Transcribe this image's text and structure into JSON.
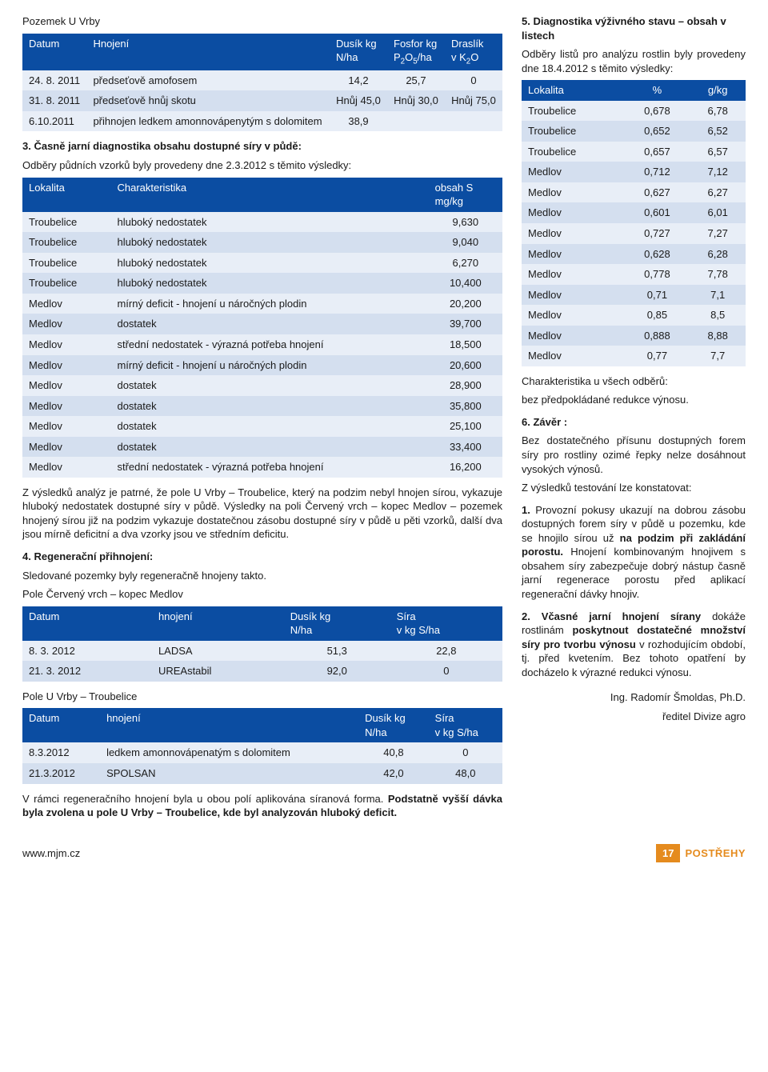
{
  "left": {
    "title_line": "Pozemek U Vrby",
    "table1": {
      "head": [
        "Datum",
        "Hnojení",
        "Dusík kg N/ha",
        "Fosfor kg P₂O₅/ha",
        "Draslík v K₂O"
      ],
      "rows": [
        [
          "24. 8. 2011",
          "předseťově amofosem",
          "14,2",
          "25,7",
          "0"
        ],
        [
          "31. 8. 2011",
          "předseťově hnůj skotu",
          "Hnůj 45,0",
          "Hnůj 30,0",
          "Hnůj 75,0"
        ],
        [
          "6.10.2011",
          "přihnojen ledkem amonnovápenytým s dolomitem",
          "38,9",
          "",
          ""
        ]
      ]
    },
    "sec3_title": "3. Časně jarní diagnostika obsahu dostupné síry v půdě:",
    "sec3_line": "Odběry půdních vzorků byly provedeny dne 2.3.2012 s těmito výsledky:",
    "table2": {
      "head": [
        "Lokalita",
        "Charakteristika",
        "obsah S mg/kg"
      ],
      "rows": [
        [
          "Troubelice",
          "hluboký nedostatek",
          "9,630"
        ],
        [
          "Troubelice",
          "hluboký nedostatek",
          "9,040"
        ],
        [
          "Troubelice",
          "hluboký nedostatek",
          "6,270"
        ],
        [
          "Troubelice",
          "hluboký nedostatek",
          "10,400"
        ],
        [
          "Medlov",
          "mírný deficit - hnojení u náročných plodin",
          "20,200"
        ],
        [
          "Medlov",
          "dostatek",
          "39,700"
        ],
        [
          "Medlov",
          "střední nedostatek - výrazná potřeba hnojení",
          "18,500"
        ],
        [
          "Medlov",
          "mírný deficit - hnojení u náročných plodin",
          "20,600"
        ],
        [
          "Medlov",
          "dostatek",
          "28,900"
        ],
        [
          "Medlov",
          "dostatek",
          "35,800"
        ],
        [
          "Medlov",
          "dostatek",
          "25,100"
        ],
        [
          "Medlov",
          "dostatek",
          "33,400"
        ],
        [
          "Medlov",
          "střední nedostatek - výrazná potřeba hnojení",
          "16,200"
        ]
      ]
    },
    "para_after_t2": "Z výsledků analýz je patrné, že pole U Vrby – Troubelice, který na podzim nebyl hnojen sírou, vykazuje hluboký nedostatek dostupné síry v půdě. Výsledky na poli Červený vrch – kopec Medlov – pozemek hnojený sírou již na podzim vykazuje dostatečnou zásobu dostupné síry v půdě u pěti vzorků, další dva jsou mírně deficitní a dva vzorky jsou ve středním deficitu.",
    "sec4_title": "4. Regenerační přihnojení:",
    "sec4_line1": "Sledované pozemky byly regeneračně hnojeny takto.",
    "sec4_line2": "Pole Červený vrch – kopec Medlov",
    "table3": {
      "head": [
        "Datum",
        "hnojení",
        "Dusík kg N/ha",
        "Síra v kg S/ha"
      ],
      "rows": [
        [
          "8. 3. 2012",
          "LADSA",
          "51,3",
          "22,8"
        ],
        [
          "21. 3. 2012",
          "UREAstabil",
          "92,0",
          "0"
        ]
      ]
    },
    "sec4_line3": "Pole U Vrby – Troubelice",
    "table4": {
      "head": [
        "Datum",
        "hnojení",
        "Dusík kg N/ha",
        "Síra v kg S/ha"
      ],
      "rows": [
        [
          "8.3.2012",
          "ledkem amonnovápenatým s dolomitem",
          "40,8",
          "0"
        ],
        [
          "21.3.2012",
          "SPOLSAN",
          "42,0",
          "48,0"
        ]
      ]
    },
    "para_after_t4a": "V rámci regeneračního hnojení byla u obou polí aplikována síranová forma. ",
    "para_after_t4b": "Podstatně vyšší dávka byla zvolena u pole U Vrby – Troubelice, kde byl analyzován hluboký deficit."
  },
  "right": {
    "sec5_title": "5. Diagnostika výživného stavu – obsah v listech",
    "sec5_line": "Odběry listů pro analýzu rostlin byly provedeny dne 18.4.2012 s těmito výsledky:",
    "table5": {
      "head": [
        "Lokalita",
        "%",
        "g/kg"
      ],
      "rows": [
        [
          "Troubelice",
          "0,678",
          "6,78"
        ],
        [
          "Troubelice",
          "0,652",
          "6,52"
        ],
        [
          "Troubelice",
          "0,657",
          "6,57"
        ],
        [
          "Medlov",
          "0,712",
          "7,12"
        ],
        [
          "Medlov",
          "0,627",
          "6,27"
        ],
        [
          "Medlov",
          "0,601",
          "6,01"
        ],
        [
          "Medlov",
          "0,727",
          "7,27"
        ],
        [
          "Medlov",
          "0,628",
          "6,28"
        ],
        [
          "Medlov",
          "0,778",
          "7,78"
        ],
        [
          "Medlov",
          "0,71",
          "7,1"
        ],
        [
          "Medlov",
          "0,85",
          "8,5"
        ],
        [
          "Medlov",
          "0,888",
          "8,88"
        ],
        [
          "Medlov",
          "0,77",
          "7,7"
        ]
      ]
    },
    "char_line1": "Charakteristika u všech odběrů:",
    "char_line2": "bez předpokládané redukce výnosu.",
    "sec6_title": "6. Závěr :",
    "sec6_p1": "Bez dostatečného přísunu dostupných forem síry pro rostliny ozimé řepky nelze dosáhnout vysokých výnosů.",
    "sec6_p2": "Z výsledků testování lze konstatovat:",
    "point1_bold": "1.",
    "point1_a": " Provozní pokusy ukazují na dobrou zásobu dostupných forem síry v půdě u pozemku, kde se hnojilo sírou už ",
    "point1_b": "na podzim při zakládání porostu.",
    "point1_c": " Hnojení kombinovaným hnojivem s obsahem síry zabezpečuje dobrý nástup časně jarní regenerace porostu před aplikací regenerační dávky hnojiv.",
    "point2_bold1": "2. Včasné jarní hnojení sírany",
    "point2_a": " dokáže rostlinám ",
    "point2_bold2": "poskytnout dostatečné množství síry pro tvorbu výnosu",
    "point2_b": " v rozhodujícím období, tj. před kvetením. Bez tohoto opatření by docházelo k výrazné redukci výnosu.",
    "sig1": "Ing. Radomír Šmoldas, Ph.D.",
    "sig2": "ředitel Divize agro"
  },
  "footer": {
    "url": "www.mjm.cz",
    "page": "17",
    "label": "POSTŘEHY"
  },
  "colors": {
    "blue": "#0b4da2",
    "rowA": "#e8eef7",
    "rowB": "#d4dfef",
    "orange": "#e58b1e"
  }
}
